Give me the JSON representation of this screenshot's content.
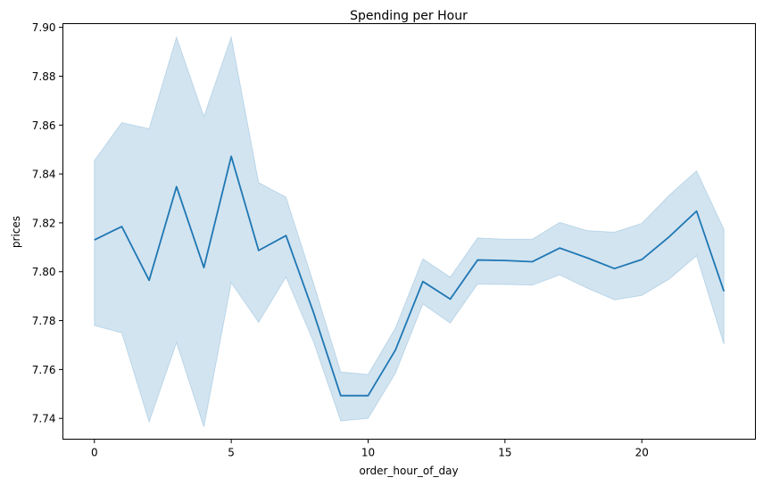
{
  "chart_data": {
    "type": "line",
    "title": "Spending per Hour",
    "xlabel": "order_hour_of_day",
    "ylabel": "prices",
    "xlim": [
      -1.15,
      24.15
    ],
    "ylim": [
      7.7315,
      7.9015
    ],
    "x_ticks": [
      0,
      5,
      10,
      15,
      20
    ],
    "y_ticks": [
      7.74,
      7.76,
      7.78,
      7.8,
      7.82,
      7.84,
      7.86,
      7.88,
      7.9
    ],
    "y_tick_labels": [
      "7.74",
      "7.76",
      "7.78",
      "7.80",
      "7.82",
      "7.84",
      "7.86",
      "7.88",
      "7.90"
    ],
    "grid": false,
    "line_color": "#1f77b4",
    "band_color": "#1f77b4",
    "series": [
      {
        "x": [
          0,
          1,
          2,
          3,
          4,
          5,
          6,
          7,
          8,
          9,
          10,
          11,
          12,
          13,
          14,
          15,
          16,
          17,
          18,
          19,
          20,
          21,
          22,
          23
        ],
        "y": [
          7.813,
          7.8185,
          7.7965,
          7.8348,
          7.8017,
          7.8472,
          7.8087,
          7.8148,
          7.7835,
          7.7493,
          7.7493,
          7.768,
          7.796,
          7.7888,
          7.8048,
          7.8046,
          7.8041,
          7.8097,
          7.8057,
          7.8013,
          7.805,
          7.8143,
          7.8248,
          7.792
        ],
        "ci_lower": [
          7.778,
          7.775,
          7.7385,
          7.771,
          7.7365,
          7.7955,
          7.7793,
          7.7978,
          7.7715,
          7.739,
          7.74,
          7.7585,
          7.7868,
          7.779,
          7.795,
          7.7948,
          7.7945,
          7.7987,
          7.7933,
          7.7885,
          7.7903,
          7.797,
          7.8065,
          7.7703
        ],
        "ci_upper": [
          7.8455,
          7.861,
          7.8585,
          7.896,
          7.8635,
          7.896,
          7.8365,
          7.8305,
          7.7955,
          7.759,
          7.758,
          7.777,
          7.8053,
          7.7978,
          7.8138,
          7.8133,
          7.8133,
          7.8202,
          7.8168,
          7.8162,
          7.8198,
          7.8313,
          7.8413,
          7.8173
        ]
      }
    ]
  }
}
